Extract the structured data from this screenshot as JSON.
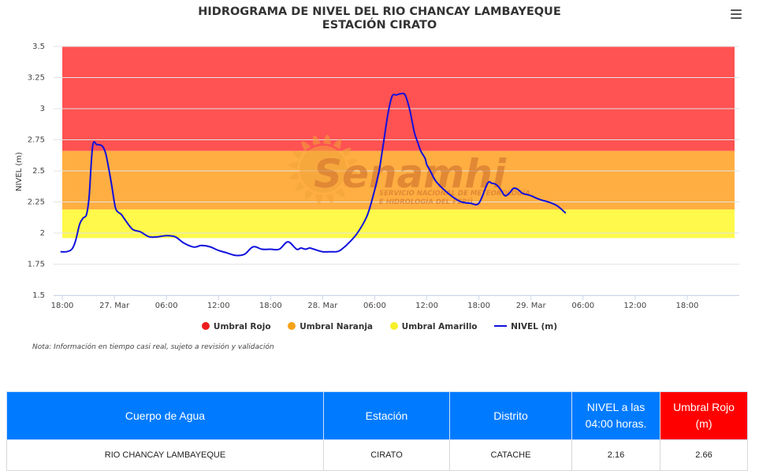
{
  "header": {
    "title_line1": "HIDROGRAMA DE NIVEL DEL RIO CHANCAY LAMBAYEQUE",
    "title_line2": "ESTACIÓN CIRATO",
    "menu_icon": "hamburger-menu-icon"
  },
  "watermark": {
    "brand": "Senamhi",
    "line1": "SERVICIO NACIONAL DE METEOROLOGÍA",
    "line2": "E HIDROLOGÍA DEL PERÚ"
  },
  "chart_data": {
    "type": "line",
    "title": "HIDROGRAMA DE NIVEL DEL RIO CHANCAY LAMBAYEQUE",
    "subtitle": "ESTACIÓN CIRATO",
    "ylabel": "NIVEL (m)",
    "xlabel": "",
    "ylim": [
      1.5,
      3.5
    ],
    "y_ticks": [
      "1.5",
      "1.75",
      "2",
      "2.25",
      "2.5",
      "2.75",
      "3",
      "3.25",
      "3.5"
    ],
    "x_range_hours": [
      -1,
      78
    ],
    "x_ticks": [
      {
        "h": 0,
        "label": "18:00"
      },
      {
        "h": 6,
        "label": "27. Mar"
      },
      {
        "h": 12,
        "label": "06:00"
      },
      {
        "h": 18,
        "label": "12:00"
      },
      {
        "h": 24,
        "label": "18:00"
      },
      {
        "h": 30,
        "label": "28. Mar"
      },
      {
        "h": 36,
        "label": "06:00"
      },
      {
        "h": 42,
        "label": "12:00"
      },
      {
        "h": 48,
        "label": "18:00"
      },
      {
        "h": 54,
        "label": "29. Mar"
      },
      {
        "h": 60,
        "label": "06:00"
      },
      {
        "h": 66,
        "label": "12:00"
      },
      {
        "h": 72,
        "label": "18:00"
      }
    ],
    "bands": [
      {
        "name": "Umbral Rojo",
        "from": 2.66,
        "to": 3.5,
        "color": "#ff5252"
      },
      {
        "name": "Umbral Naranja",
        "from": 2.19,
        "to": 2.66,
        "color": "#ffae42"
      },
      {
        "name": "Umbral Amarillo",
        "from": 1.96,
        "to": 2.19,
        "color": "#fef94a"
      }
    ],
    "series": [
      {
        "name": "NIVEL (m)",
        "color": "#1010dd",
        "x": [
          -0.2,
          0.5,
          1.1,
          1.5,
          2.0,
          2.4,
          2.8,
          3.1,
          3.5,
          4.0,
          4.6,
          5.0,
          5.4,
          5.7,
          6.1,
          6.4,
          6.8,
          7.3,
          8.1,
          9.0,
          10.0,
          11.0,
          12.0,
          13.0,
          14.0,
          15.0,
          15.5,
          16.0,
          17.0,
          18.0,
          19.0,
          20.0,
          21.0,
          22.0,
          23.0,
          24.0,
          25.0,
          26.0,
          27.0,
          27.5,
          28.0,
          28.5,
          29.0,
          30.0,
          31.0,
          31.5,
          32.0,
          33.0,
          34.0,
          35.0,
          35.5,
          36.0,
          36.5,
          37.0,
          37.5,
          38.0,
          38.5,
          39.0,
          39.5,
          40.0,
          40.3,
          40.6,
          41.0,
          41.3,
          41.8,
          42.0,
          42.4,
          43.0,
          43.8,
          45.0,
          46.0,
          47.0,
          48.0,
          49.0,
          49.5,
          50.0,
          50.5,
          51.0,
          51.5,
          52.0,
          52.5,
          53.0,
          53.5,
          54.0,
          55.0,
          56.0,
          57.0,
          58.0
        ],
        "y": [
          1.85,
          1.85,
          1.87,
          1.93,
          2.07,
          2.12,
          2.15,
          2.3,
          2.7,
          2.71,
          2.7,
          2.64,
          2.5,
          2.38,
          2.21,
          2.17,
          2.15,
          2.1,
          2.03,
          2.01,
          1.97,
          1.97,
          1.98,
          1.97,
          1.92,
          1.89,
          1.89,
          1.9,
          1.89,
          1.86,
          1.84,
          1.82,
          1.83,
          1.89,
          1.87,
          1.87,
          1.87,
          1.93,
          1.87,
          1.88,
          1.87,
          1.88,
          1.87,
          1.85,
          1.85,
          1.85,
          1.86,
          1.92,
          2.0,
          2.12,
          2.22,
          2.35,
          2.5,
          2.72,
          2.95,
          3.1,
          3.11,
          3.12,
          3.11,
          3.0,
          2.9,
          2.8,
          2.72,
          2.66,
          2.6,
          2.55,
          2.5,
          2.42,
          2.36,
          2.29,
          2.25,
          2.24,
          2.24,
          2.4,
          2.4,
          2.39,
          2.35,
          2.3,
          2.32,
          2.36,
          2.35,
          2.32,
          2.31,
          2.3,
          2.27,
          2.25,
          2.22,
          2.16
        ]
      }
    ],
    "legend": [
      "Umbral Rojo",
      "Umbral Naranja",
      "Umbral Amarillo",
      "NIVEL (m)"
    ],
    "legend_placement": "bottom",
    "grid": "horizontal"
  },
  "note": "Nota: Información en tiempo casi real, sujeto a revisión y validación",
  "table": {
    "headers": [
      "Cuerpo de Agua",
      "Estación",
      "Distrito",
      "NIVEL a las 04:00 horas.",
      "Umbral Rojo (m)"
    ],
    "rows": [
      [
        "RIO CHANCAY LAMBAYEQUE",
        "CIRATO",
        "CATACHE",
        "2.16",
        "2.66"
      ]
    ]
  }
}
